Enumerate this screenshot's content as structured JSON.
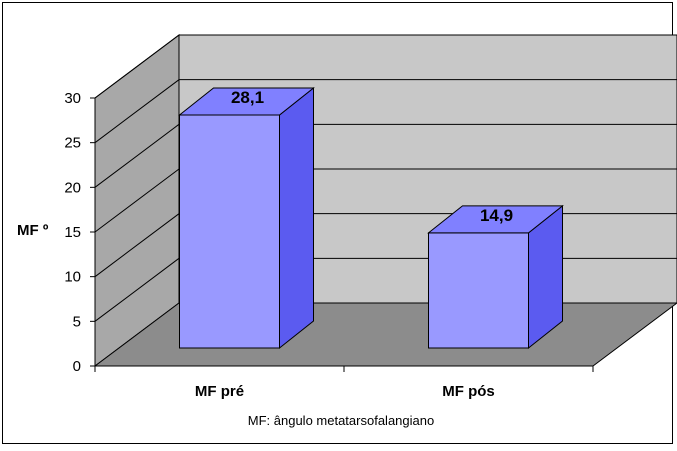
{
  "chart_data": {
    "type": "bar",
    "categories": [
      "MF pré",
      "MF pós"
    ],
    "values": [
      28.1,
      14.9
    ],
    "data_labels": [
      "28,1",
      "14,9"
    ],
    "ylabel": "MF º",
    "yticks": [
      "0",
      "5",
      "10",
      "15",
      "20",
      "25",
      "30"
    ],
    "ylim": [
      0,
      30
    ],
    "grid": true,
    "caption": "MF: ângulo metatarsofalangiano",
    "colors": {
      "bar_front": "#9999ff",
      "bar_side": "#5b5bf0",
      "bar_top": "#8080ff",
      "wall": "#c8c8c8",
      "floor": "#8c8c8c",
      "side_wall": "#a8a8a8"
    }
  }
}
